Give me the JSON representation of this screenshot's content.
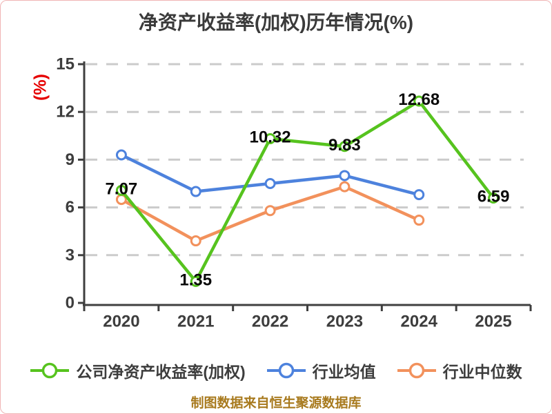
{
  "caption": "制图数据来自恒生聚源数据库",
  "colors": {
    "company": "#56c31e",
    "industry_avg": "#4d82dd",
    "industry_median": "#f2915c",
    "axis": "#3f3f3f",
    "grid": "#cbcbcb",
    "tick_label": "#3d3d3d",
    "data_label": "#0a0a0a",
    "y_unit": "#e60000",
    "title": "#3a3a3a",
    "caption": "#a87a1e",
    "panel_border": "#f0b4b4",
    "marker_fill": "#ffffff"
  },
  "chart_data": {
    "type": "line",
    "title": "净资产收益率(加权)历年情况(%)",
    "ylabel": "(%)",
    "xlabel": "",
    "categories": [
      "2020",
      "2021",
      "2022",
      "2023",
      "2024",
      "2025"
    ],
    "ylim": [
      0,
      15
    ],
    "yticks": [
      0,
      3,
      6,
      9,
      12,
      15
    ],
    "grid": "horizontal-dashed",
    "legend_position": "bottom",
    "series": [
      {
        "name": "公司净资产收益率(加权)",
        "color": "#56c31e",
        "show_labels": true,
        "values": [
          7.07,
          1.35,
          10.32,
          9.83,
          12.68,
          6.59
        ],
        "labels": [
          "7.07",
          "1.35",
          "10.32",
          "9.83",
          "12.68",
          "6.59"
        ]
      },
      {
        "name": "行业均值",
        "color": "#4d82dd",
        "show_labels": false,
        "values": [
          9.3,
          7.0,
          7.5,
          8.0,
          6.8,
          null
        ]
      },
      {
        "name": "行业中位数",
        "color": "#f2915c",
        "show_labels": false,
        "values": [
          6.5,
          3.9,
          5.8,
          7.3,
          5.2,
          null
        ]
      }
    ]
  }
}
